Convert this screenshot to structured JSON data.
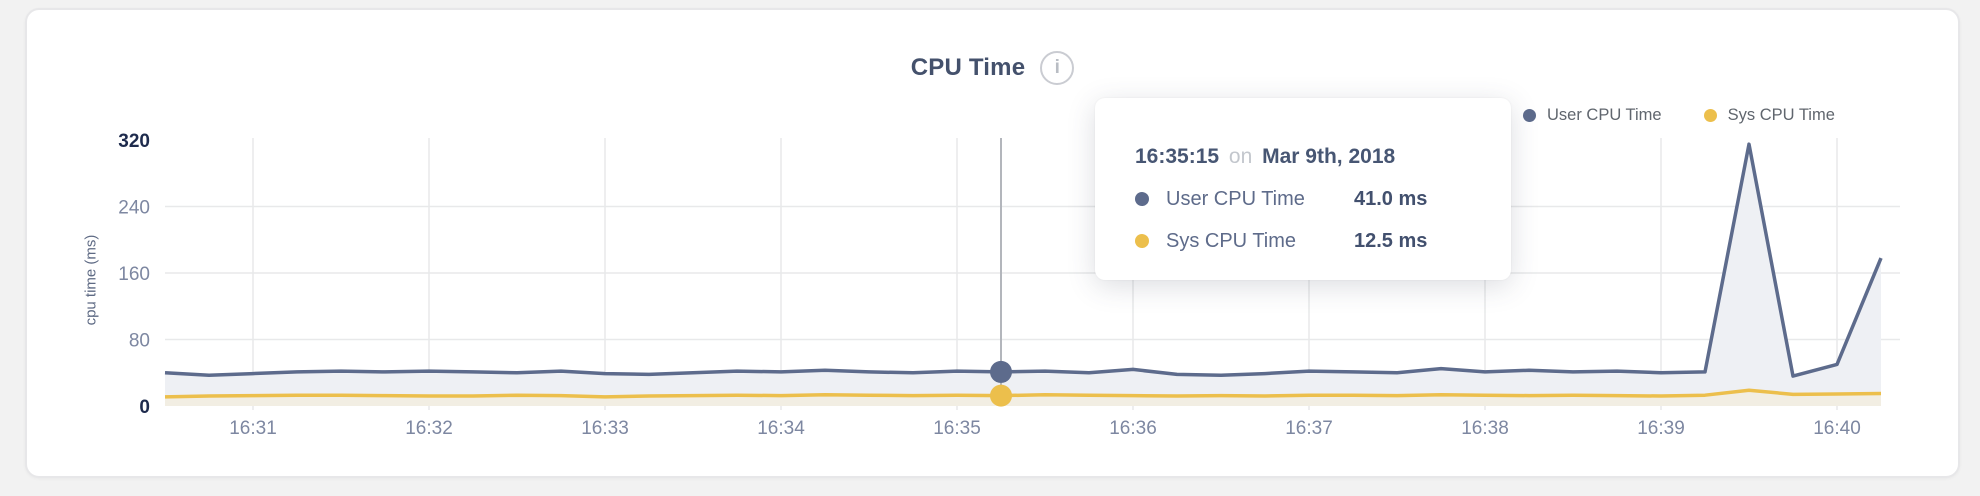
{
  "page": {
    "background": "#f2f2f2"
  },
  "header": {
    "title": "CPU Time",
    "info_glyph": "i"
  },
  "legend": {
    "items": [
      {
        "label": "User CPU Time",
        "color": "#5d6b8c"
      },
      {
        "label": "Sys CPU Time",
        "color": "#ecbf4c"
      }
    ]
  },
  "tooltip": {
    "time": "16:35:15",
    "connector": "on",
    "date": "Mar 9th, 2018",
    "rows": [
      {
        "label": "User CPU Time",
        "value": "41.0 ms",
        "color": "#5d6b8c"
      },
      {
        "label": "Sys CPU Time",
        "value": "12.5 ms",
        "color": "#ecbf4c"
      }
    ]
  },
  "chart_data": {
    "type": "area",
    "title": "CPU Time",
    "xlabel": "",
    "ylabel": "cpu time (ms)",
    "ylim": [
      0,
      320
    ],
    "grid": true,
    "legend_position": "top-right",
    "yticks": [
      {
        "value": 0,
        "label": "0",
        "strong": true
      },
      {
        "value": 80,
        "label": "80",
        "strong": false
      },
      {
        "value": 160,
        "label": "160",
        "strong": false
      },
      {
        "value": 240,
        "label": "240",
        "strong": false
      },
      {
        "value": 320,
        "label": "320",
        "strong": true
      }
    ],
    "xtick_labels": [
      "16:31",
      "16:32",
      "16:33",
      "16:34",
      "16:35",
      "16:36",
      "16:37",
      "16:38",
      "16:39",
      "16:40"
    ],
    "x": [
      "16:30:30",
      "16:30:45",
      "16:31:00",
      "16:31:15",
      "16:31:30",
      "16:31:45",
      "16:32:00",
      "16:32:15",
      "16:32:30",
      "16:32:45",
      "16:33:00",
      "16:33:15",
      "16:33:30",
      "16:33:45",
      "16:34:00",
      "16:34:15",
      "16:34:30",
      "16:34:45",
      "16:35:00",
      "16:35:15",
      "16:35:30",
      "16:35:45",
      "16:36:00",
      "16:36:15",
      "16:36:30",
      "16:36:45",
      "16:37:00",
      "16:37:15",
      "16:37:30",
      "16:37:45",
      "16:38:00",
      "16:38:15",
      "16:38:30",
      "16:38:45",
      "16:39:00",
      "16:39:15",
      "16:39:30",
      "16:39:45",
      "16:40:00",
      "16:40:15"
    ],
    "series": [
      {
        "name": "User CPU Time",
        "color": "#5d6b8c",
        "fill": "#eef0f4",
        "values": [
          40,
          37,
          39,
          41,
          42,
          41,
          42,
          41,
          40,
          42,
          39,
          38,
          40,
          42,
          41,
          43,
          41,
          40,
          42,
          41,
          42,
          40,
          44,
          38,
          37,
          39,
          42,
          41,
          40,
          45,
          41,
          43,
          41,
          42,
          40,
          41,
          315,
          36,
          50,
          178
        ]
      },
      {
        "name": "Sys CPU Time",
        "color": "#ecbf4c",
        "fill": "#f2eee3",
        "values": [
          11,
          12,
          12.5,
          13,
          13,
          12.5,
          12,
          12,
          13,
          12.5,
          11,
          12,
          12.5,
          13,
          12.5,
          13.5,
          13,
          12.5,
          13,
          12.5,
          13.5,
          13,
          12.5,
          12,
          12.5,
          12,
          13,
          13,
          12.5,
          13.5,
          13,
          12.5,
          13,
          12.5,
          12,
          13,
          19,
          14,
          14.5,
          15
        ]
      }
    ],
    "highlight": {
      "time": "16:35:15",
      "values": [
        41.0,
        12.5
      ]
    },
    "colors": {
      "grid": "#e8e9ea",
      "crosshair": "#b3b6bc",
      "tick": "#7d87a1",
      "tick_strong": "#1e2b4d"
    }
  }
}
